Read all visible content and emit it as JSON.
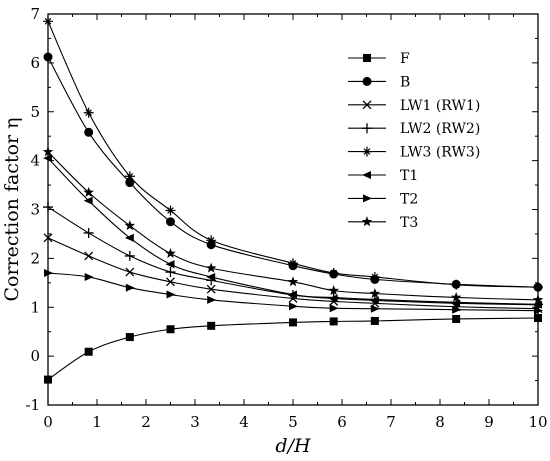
{
  "chart_data": {
    "type": "line",
    "title": "",
    "xlabel": "d/H",
    "ylabel": "Correction factor η",
    "xlim": [
      0,
      10
    ],
    "ylim": [
      -1,
      7
    ],
    "xticks": [
      "0",
      "1",
      "2",
      "3",
      "4",
      "5",
      "6",
      "7",
      "8",
      "9",
      "10"
    ],
    "yticks": [
      "-1",
      "0",
      "1",
      "2",
      "3",
      "4",
      "5",
      "6",
      "7"
    ],
    "legend_position": "top-right",
    "grid": false,
    "series": [
      {
        "name": "F",
        "marker": "square",
        "x": [
          0,
          0.83,
          1.67,
          2.5,
          3.33,
          5,
          5.83,
          6.67,
          8.33,
          10
        ],
        "y": [
          -0.48,
          0.09,
          0.39,
          0.55,
          0.62,
          0.69,
          0.71,
          0.72,
          0.76,
          0.78
        ]
      },
      {
        "name": "B",
        "marker": "circle",
        "x": [
          0,
          0.83,
          1.67,
          2.5,
          3.33,
          5,
          5.83,
          6.67,
          8.33,
          10
        ],
        "y": [
          6.12,
          4.58,
          3.55,
          2.75,
          2.28,
          1.85,
          1.68,
          1.57,
          1.47,
          1.41
        ]
      },
      {
        "name": "LW1 (RW1)",
        "marker": "x",
        "x": [
          0,
          0.83,
          1.67,
          2.5,
          3.33,
          5,
          5.83,
          6.67,
          8.33,
          10
        ],
        "y": [
          2.42,
          2.05,
          1.72,
          1.52,
          1.37,
          1.18,
          1.12,
          1.08,
          1.01,
          0.97
        ]
      },
      {
        "name": "LW2 (RW2)",
        "marker": "plus",
        "x": [
          0,
          0.83,
          1.67,
          2.5,
          3.33,
          5,
          5.83,
          6.67,
          8.33,
          10
        ],
        "y": [
          3.05,
          2.52,
          2.05,
          1.72,
          1.55,
          1.25,
          1.2,
          1.16,
          1.1,
          1.06
        ]
      },
      {
        "name": "LW3 (RW3)",
        "marker": "asterisk",
        "x": [
          0,
          0.83,
          1.67,
          2.5,
          3.33,
          5,
          5.83,
          6.67,
          8.33,
          10
        ],
        "y": [
          6.85,
          4.98,
          3.68,
          2.98,
          2.37,
          1.9,
          1.7,
          1.62,
          1.46,
          1.41
        ]
      },
      {
        "name": "T1",
        "marker": "triangle-left",
        "x": [
          0,
          0.83,
          1.67,
          2.5,
          3.33,
          5,
          5.83,
          6.67,
          8.33,
          10
        ],
        "y": [
          4.05,
          3.18,
          2.42,
          1.88,
          1.62,
          1.26,
          1.18,
          1.14,
          1.08,
          1.05
        ]
      },
      {
        "name": "T2",
        "marker": "triangle-right",
        "x": [
          0,
          0.83,
          1.67,
          2.5,
          3.33,
          5,
          5.83,
          6.67,
          8.33,
          10
        ],
        "y": [
          1.7,
          1.62,
          1.4,
          1.26,
          1.15,
          1.02,
          0.98,
          0.97,
          0.95,
          0.93
        ]
      },
      {
        "name": "T3",
        "marker": "star",
        "x": [
          0,
          0.83,
          1.67,
          2.5,
          3.33,
          5,
          5.83,
          6.67,
          8.33,
          10
        ],
        "y": [
          4.18,
          3.35,
          2.67,
          2.1,
          1.8,
          1.52,
          1.34,
          1.28,
          1.2,
          1.15
        ]
      }
    ]
  }
}
